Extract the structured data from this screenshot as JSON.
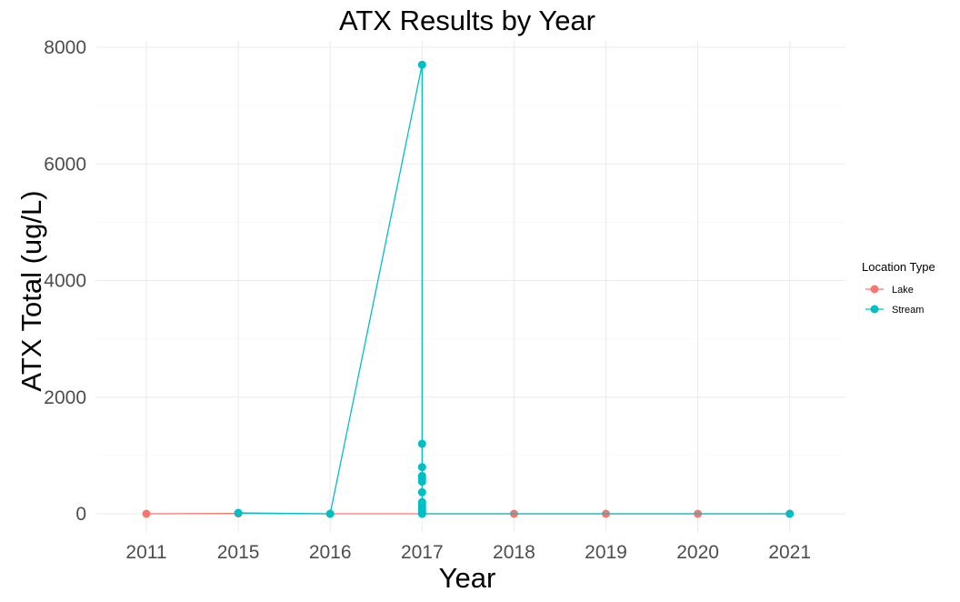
{
  "chart_data": {
    "type": "line",
    "title": "ATX Results by Year",
    "xlabel": "Year",
    "ylabel": "ATX Total (ug/L)",
    "categories": [
      "2011",
      "2015",
      "2016",
      "2017",
      "2018",
      "2019",
      "2020",
      "2021"
    ],
    "ylim": [
      0,
      8000
    ],
    "yticks": [
      0,
      2000,
      4000,
      6000,
      8000
    ],
    "grid": true,
    "legend": {
      "title": "Location Type",
      "position": "right"
    },
    "series": [
      {
        "name": "Lake",
        "color": "#F8766D",
        "points": [
          {
            "x": "2011",
            "y": 0
          },
          {
            "x": "2015",
            "y": 5
          },
          {
            "x": "2016",
            "y": 0
          },
          {
            "x": "2017",
            "y": 0
          },
          {
            "x": "2018",
            "y": 0
          },
          {
            "x": "2019",
            "y": 0
          },
          {
            "x": "2020",
            "y": 0
          },
          {
            "x": "2021",
            "y": 0
          }
        ]
      },
      {
        "name": "Stream",
        "color": "#00BFC4",
        "points": [
          {
            "x": "2015",
            "y": 15
          },
          {
            "x": "2016",
            "y": 0
          },
          {
            "x": "2017",
            "y": 7700
          },
          {
            "x": "2017",
            "y": 1200
          },
          {
            "x": "2017",
            "y": 800
          },
          {
            "x": "2017",
            "y": 650
          },
          {
            "x": "2017",
            "y": 600
          },
          {
            "x": "2017",
            "y": 550
          },
          {
            "x": "2017",
            "y": 370
          },
          {
            "x": "2017",
            "y": 200
          },
          {
            "x": "2017",
            "y": 150
          },
          {
            "x": "2017",
            "y": 100
          },
          {
            "x": "2017",
            "y": 60
          },
          {
            "x": "2017",
            "y": 20
          },
          {
            "x": "2017",
            "y": 0
          },
          {
            "x": "2021",
            "y": 0
          }
        ]
      }
    ]
  }
}
